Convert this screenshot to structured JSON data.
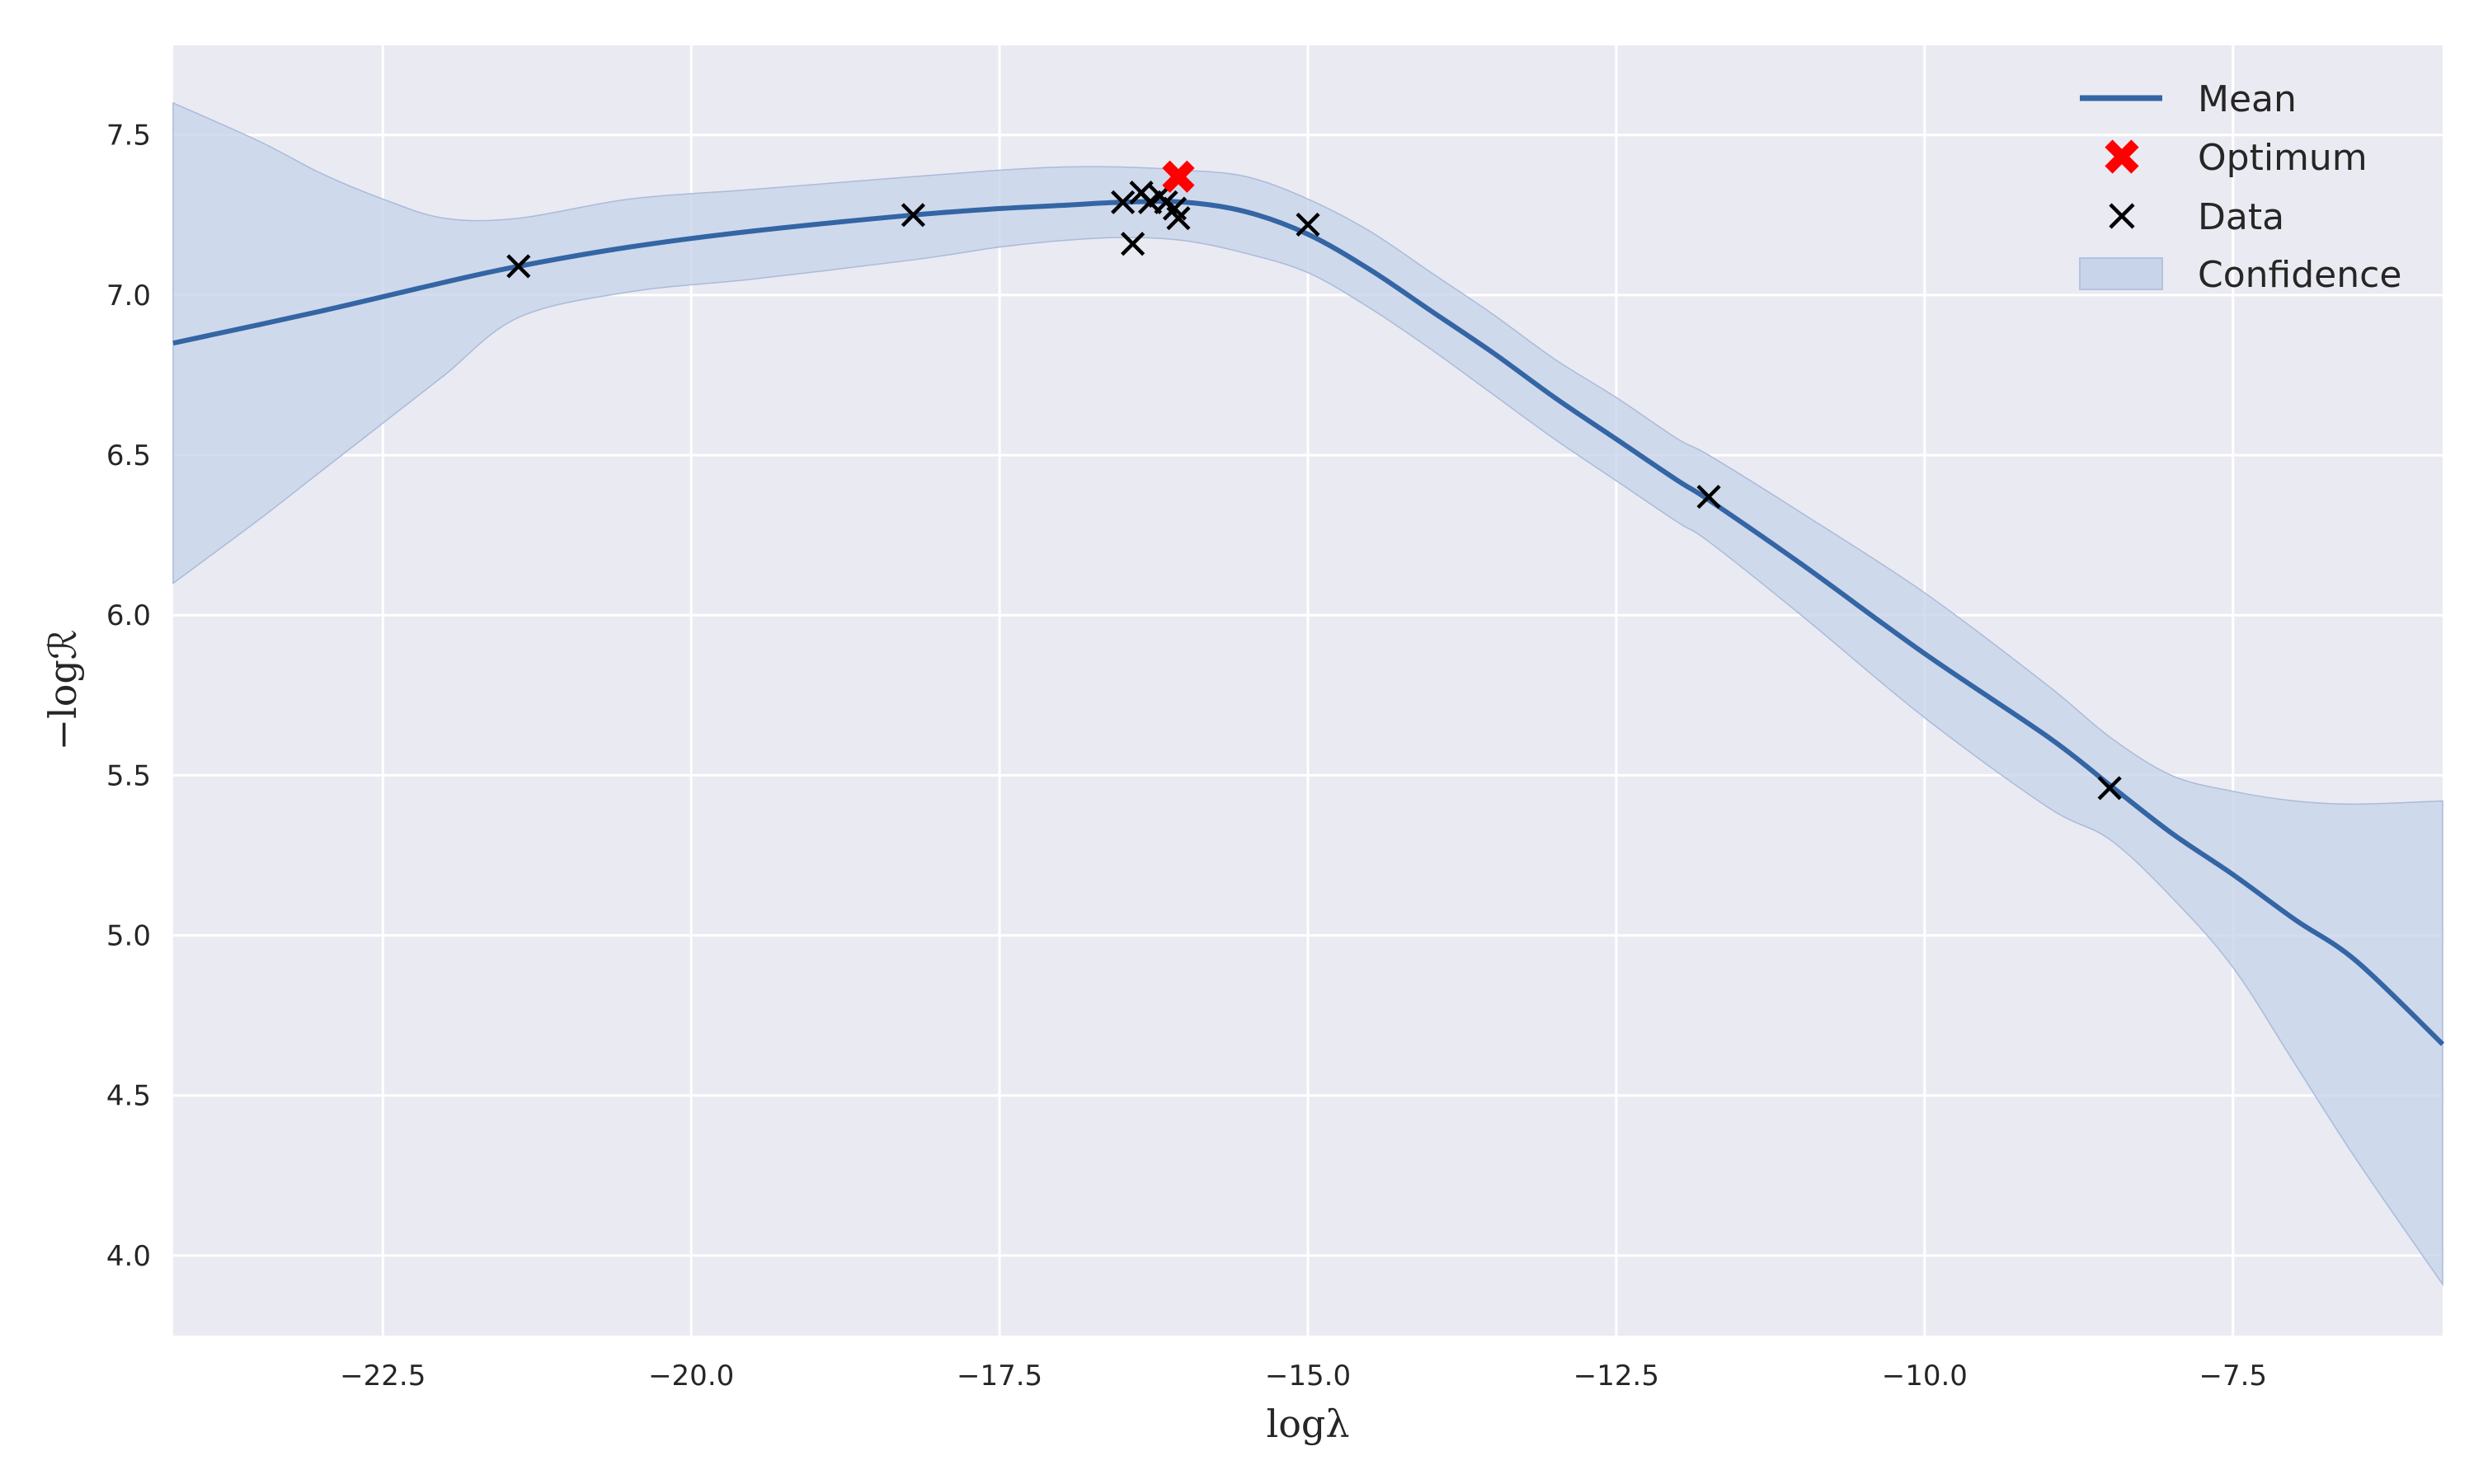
{
  "chart_data": {
    "type": "line",
    "xlabel": "logλ",
    "ylabel": "−logℛ",
    "xlim": [
      -24.2,
      -5.8
    ],
    "ylim": [
      3.75,
      7.78
    ],
    "xticks": [
      -22.5,
      -20.0,
      -17.5,
      -15.0,
      -12.5,
      -10.0,
      -7.5
    ],
    "xtick_labels": [
      "−22.5",
      "−20.0",
      "−17.5",
      "−15.0",
      "−12.5",
      "−10.0",
      "−7.5"
    ],
    "yticks": [
      4.0,
      4.5,
      5.0,
      5.5,
      6.0,
      6.5,
      7.0,
      7.5
    ],
    "ytick_labels": [
      "4.0",
      "4.5",
      "5.0",
      "5.5",
      "6.0",
      "6.5",
      "7.0",
      "7.5"
    ],
    "grid": true,
    "legend_position": "top-right",
    "colors": {
      "background": "#eaeaf2",
      "grid": "#ffffff",
      "mean": "#3465a4",
      "confidence": "#c8d4ea",
      "optimum": "#ff0000",
      "data": "#000000"
    },
    "series": [
      {
        "name": "Mean",
        "kind": "line",
        "x": [
          -24.2,
          -23.0,
          -22.0,
          -21.4,
          -20.5,
          -19.5,
          -18.2,
          -17.5,
          -17.0,
          -16.5,
          -16.0,
          -15.5,
          -15.0,
          -14.5,
          -14.0,
          -13.5,
          -13.0,
          -12.5,
          -12.0,
          -11.75,
          -11.0,
          -10.0,
          -9.0,
          -8.5,
          -8.0,
          -7.5,
          -7.0,
          -6.5,
          -5.8
        ],
        "y": [
          6.85,
          6.95,
          7.04,
          7.09,
          7.15,
          7.2,
          7.25,
          7.27,
          7.28,
          7.29,
          7.29,
          7.26,
          7.19,
          7.08,
          6.95,
          6.82,
          6.68,
          6.55,
          6.42,
          6.36,
          6.16,
          5.88,
          5.62,
          5.47,
          5.32,
          5.19,
          5.05,
          4.92,
          4.66
        ]
      },
      {
        "name": "Confidence",
        "kind": "band",
        "x": [
          -24.2,
          -23.5,
          -23.0,
          -22.5,
          -22.0,
          -21.4,
          -20.5,
          -19.5,
          -18.2,
          -17.5,
          -17.0,
          -16.5,
          -16.0,
          -15.5,
          -15.0,
          -14.5,
          -14.0,
          -13.5,
          -13.0,
          -12.5,
          -12.0,
          -11.75,
          -11.0,
          -10.0,
          -9.0,
          -8.5,
          -8.0,
          -7.5,
          -7.0,
          -6.5,
          -5.8
        ],
        "lower": [
          6.1,
          6.3,
          6.45,
          6.6,
          6.75,
          6.93,
          7.01,
          7.05,
          7.11,
          7.15,
          7.17,
          7.18,
          7.17,
          7.13,
          7.07,
          6.96,
          6.83,
          6.69,
          6.55,
          6.42,
          6.29,
          6.23,
          6.0,
          5.68,
          5.4,
          5.3,
          5.12,
          4.9,
          4.6,
          4.3,
          3.91
        ],
        "upper": [
          7.6,
          7.48,
          7.38,
          7.3,
          7.24,
          7.24,
          7.3,
          7.33,
          7.37,
          7.39,
          7.4,
          7.4,
          7.39,
          7.37,
          7.3,
          7.2,
          7.07,
          6.94,
          6.8,
          6.68,
          6.55,
          6.5,
          6.32,
          6.07,
          5.78,
          5.62,
          5.5,
          5.45,
          5.42,
          5.41,
          5.42
        ]
      },
      {
        "name": "Data",
        "kind": "scatter",
        "x": [
          -21.4,
          -18.2,
          -16.5,
          -16.42,
          -16.35,
          -16.28,
          -16.2,
          -16.15,
          -16.08,
          -16.05,
          -15.0,
          -11.75,
          -8.5
        ],
        "y": [
          7.09,
          7.25,
          7.29,
          7.16,
          7.32,
          7.29,
          7.31,
          7.29,
          7.27,
          7.24,
          7.22,
          6.37,
          5.46
        ]
      },
      {
        "name": "Optimum",
        "kind": "marker",
        "x": [
          -16.05
        ],
        "y": [
          7.37
        ]
      }
    ],
    "legend": [
      "Mean",
      "Optimum",
      "Data",
      "Confidence"
    ]
  }
}
